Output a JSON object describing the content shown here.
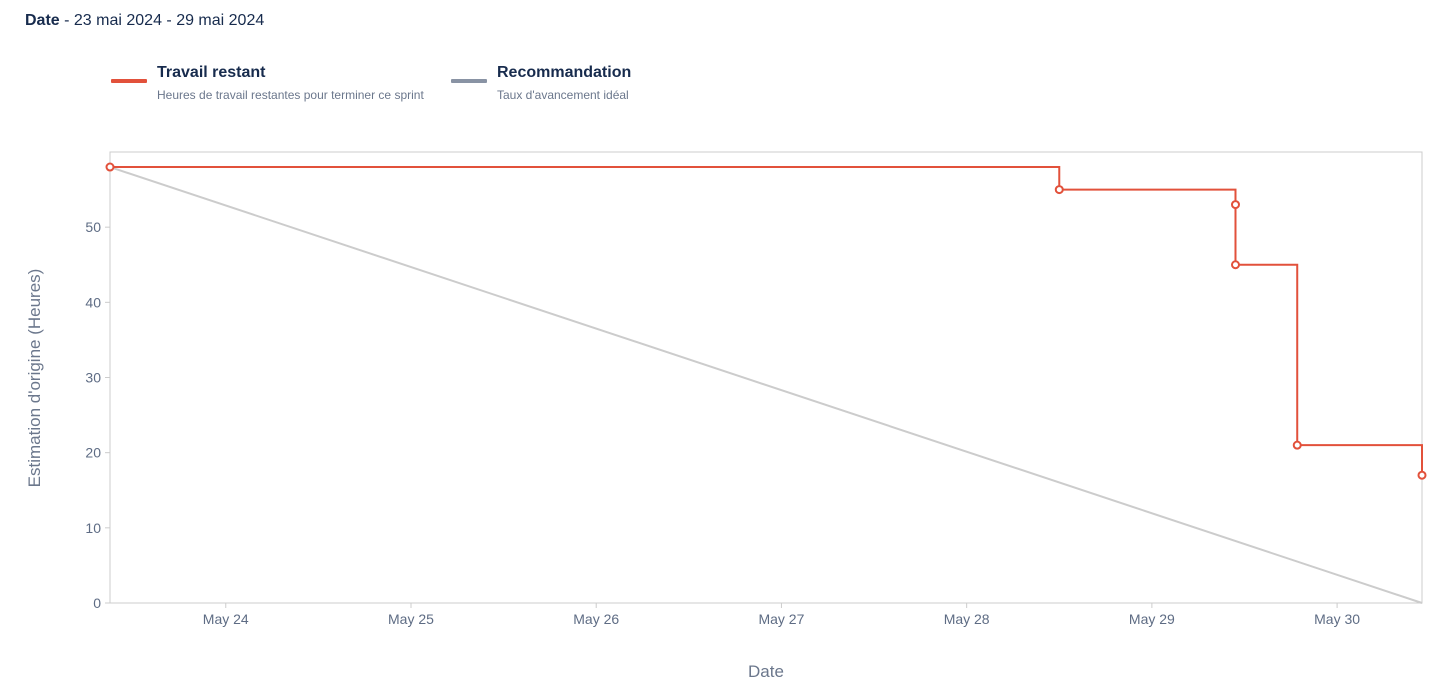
{
  "header": {
    "date_label": "Date",
    "date_range": " - 23 mai 2024 - 29 mai 2024"
  },
  "legend": [
    {
      "name": "Travail restant",
      "description": "Heures de travail restantes pour terminer ce sprint",
      "color": "#e2513b"
    },
    {
      "name": "Recommandation",
      "description": "Taux d'avancement idéal",
      "color": "#8993a4"
    }
  ],
  "chart_data": {
    "type": "line",
    "xlabel": "Date",
    "ylabel": "Estimation d'origine (Heures)",
    "x_range": [
      "2024-05-23 09:00",
      "2024-05-30 11:00"
    ],
    "ylim": [
      0,
      60
    ],
    "x_ticks": [
      {
        "date": "2024-05-24 00:00",
        "label": "May 24"
      },
      {
        "date": "2024-05-25 00:00",
        "label": "May 25"
      },
      {
        "date": "2024-05-26 00:00",
        "label": "May 26"
      },
      {
        "date": "2024-05-27 00:00",
        "label": "May 27"
      },
      {
        "date": "2024-05-28 00:00",
        "label": "May 28"
      },
      {
        "date": "2024-05-29 00:00",
        "label": "May 29"
      },
      {
        "date": "2024-05-30 00:00",
        "label": "May 30"
      }
    ],
    "y_ticks": [
      0,
      10,
      20,
      30,
      40,
      50
    ],
    "grid": false,
    "series": [
      {
        "name": "Travail restant",
        "color": "#e2513b",
        "style": "step",
        "points": [
          {
            "date": "2024-05-23 09:00",
            "value": 58
          },
          {
            "date": "2024-05-28 12:00",
            "value": 55
          },
          {
            "date": "2024-05-29 10:50",
            "value": 53
          },
          {
            "date": "2024-05-29 10:50",
            "value": 45
          },
          {
            "date": "2024-05-29 18:50",
            "value": 21
          },
          {
            "date": "2024-05-30 11:00",
            "value": 17
          }
        ]
      },
      {
        "name": "Recommandation",
        "color": "#cccccc",
        "style": "linear",
        "points": [
          {
            "date": "2024-05-23 09:00",
            "value": 58
          },
          {
            "date": "2024-05-30 11:00",
            "value": 0
          }
        ]
      }
    ]
  }
}
